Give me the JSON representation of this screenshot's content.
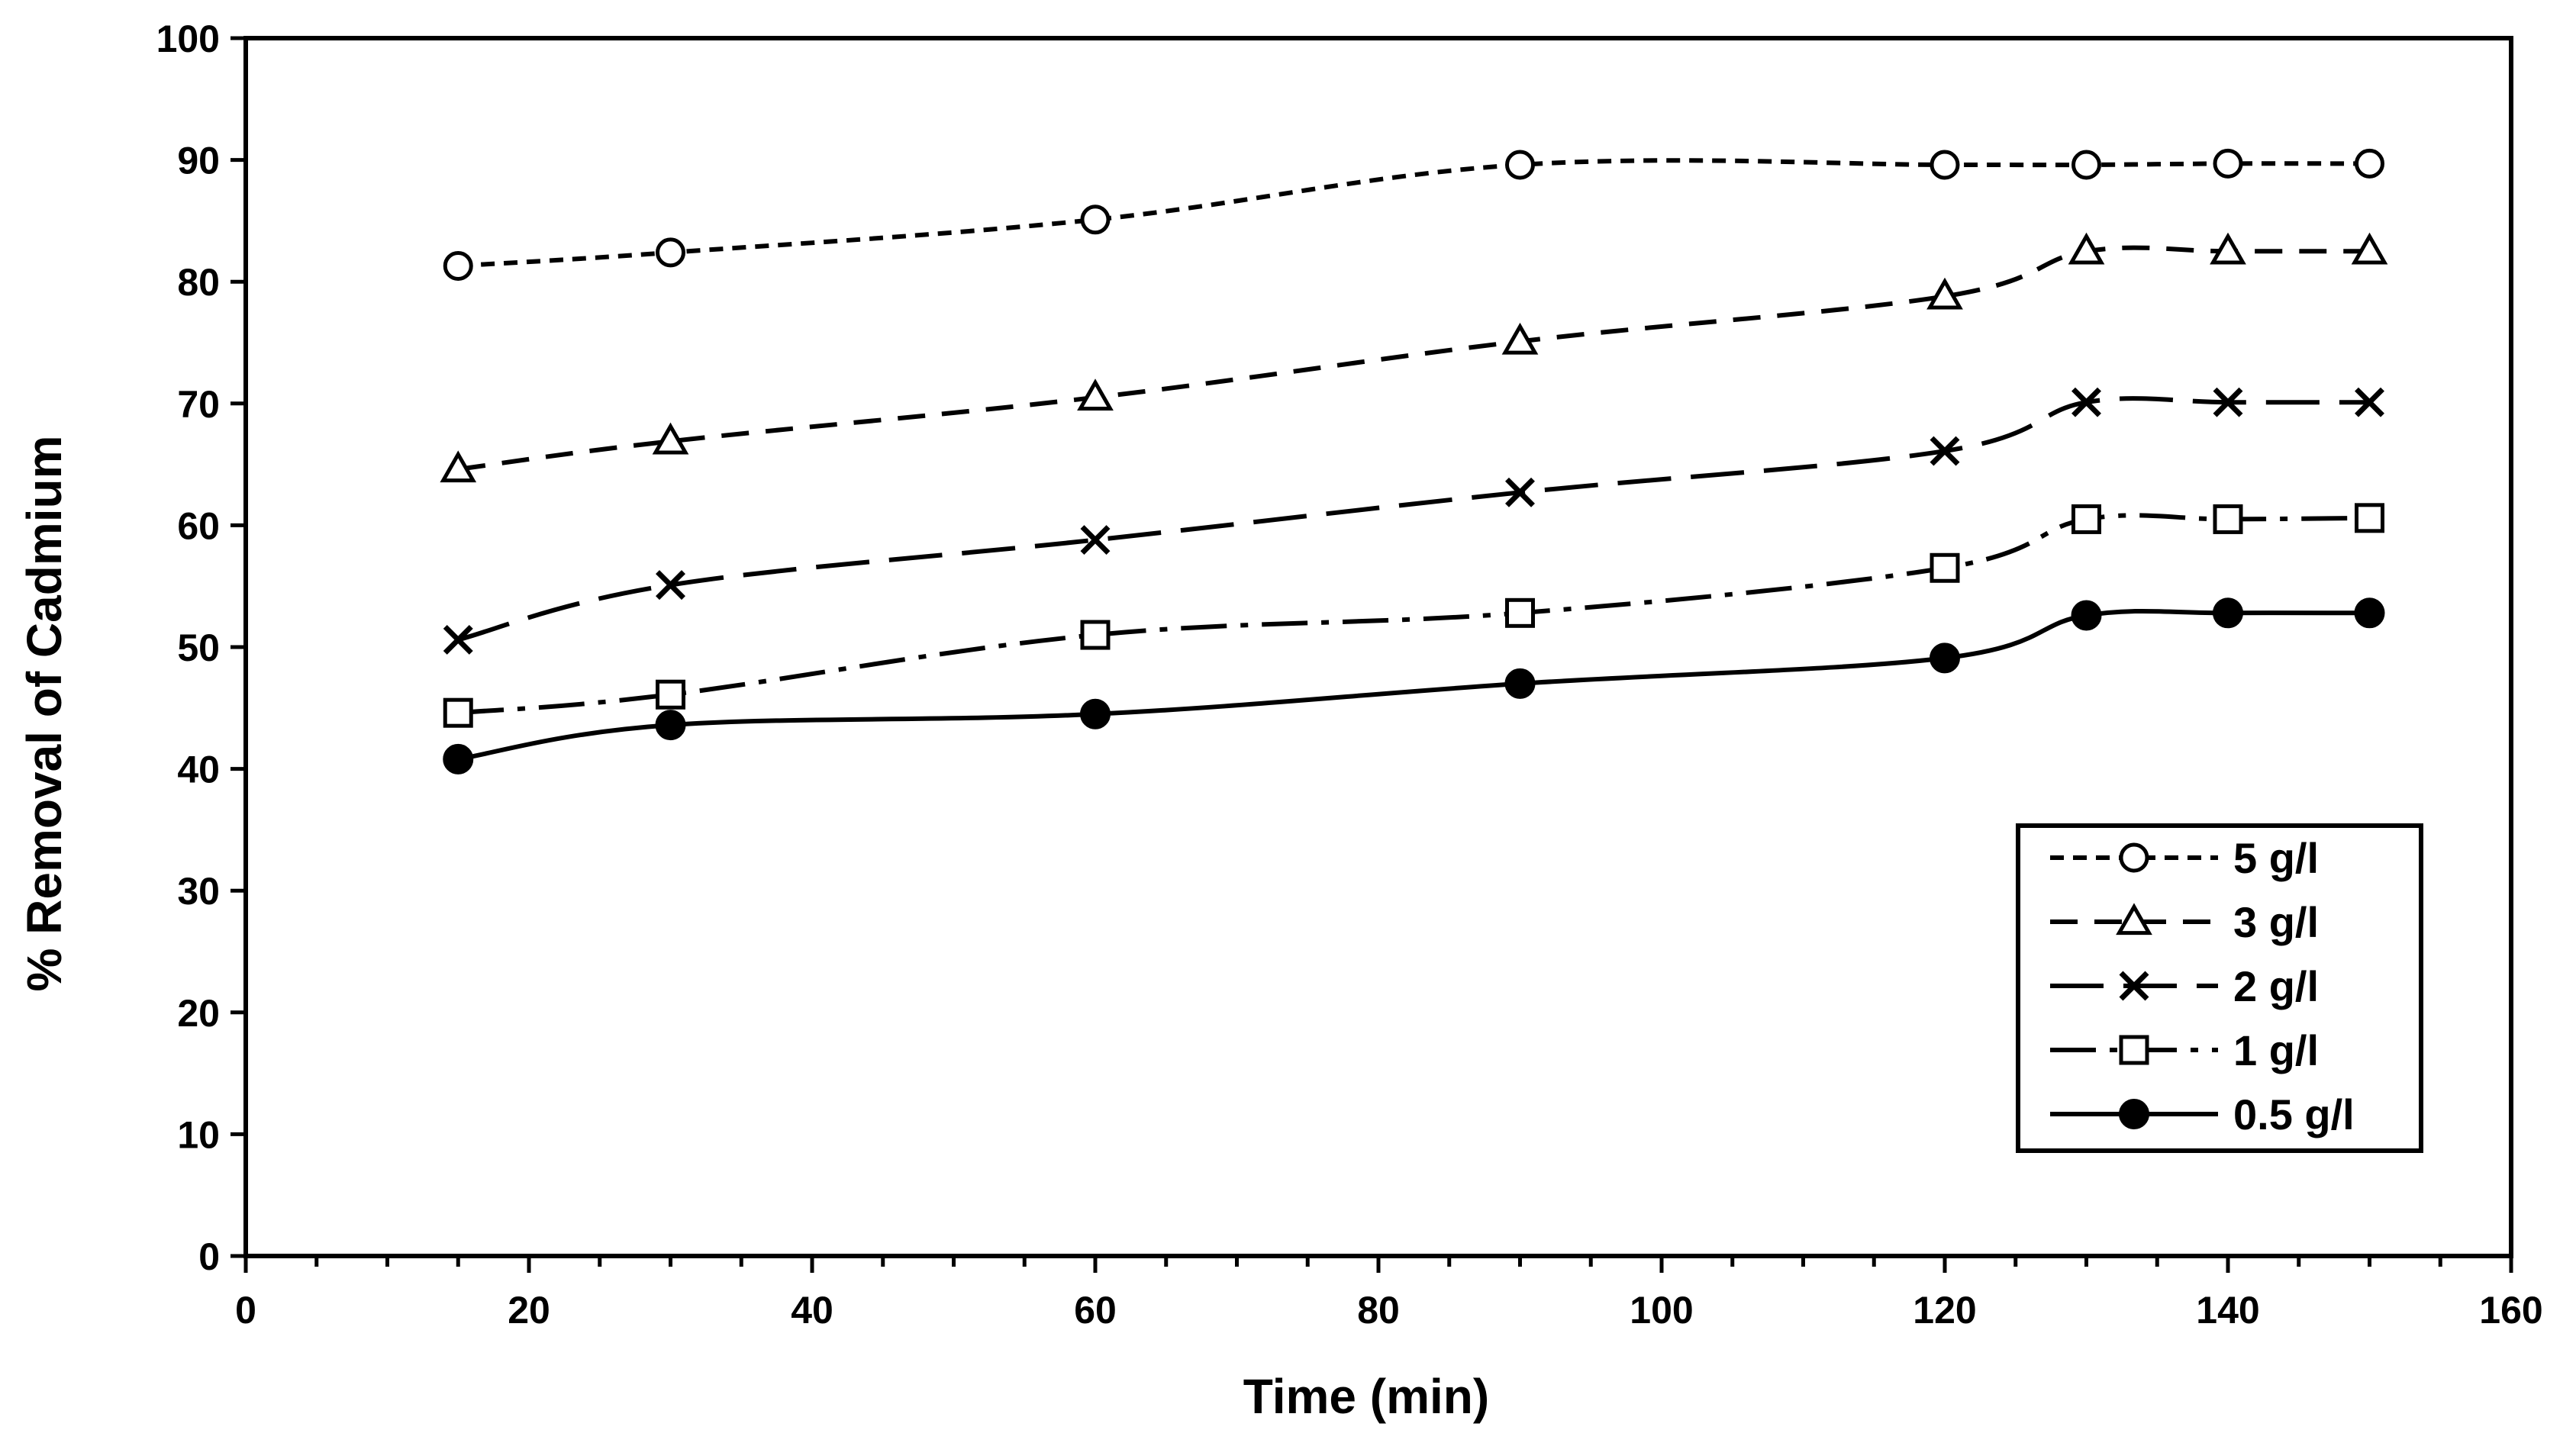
{
  "chart_data": {
    "type": "line",
    "title": "",
    "xlabel": "Time (min)",
    "ylabel": "% Removal of Cadmium",
    "xlim": [
      0,
      160
    ],
    "ylim": [
      0,
      100
    ],
    "x_ticks": [
      0,
      20,
      40,
      60,
      80,
      100,
      120,
      140,
      160
    ],
    "y_ticks": [
      0,
      10,
      20,
      30,
      40,
      50,
      60,
      70,
      80,
      90,
      100
    ],
    "x_minor_step": 5,
    "grid": false,
    "legend_position": "bottom-right",
    "x": [
      15,
      30,
      60,
      90,
      120,
      130,
      140,
      150
    ],
    "series": [
      {
        "name": "5 g/l",
        "marker": "circle-open",
        "dash": "short-dash",
        "values": [
          81.3,
          82.4,
          85.1,
          89.6,
          89.6,
          89.6,
          89.7,
          89.7
        ]
      },
      {
        "name": "3 g/l",
        "marker": "triangle-open",
        "dash": "dash",
        "values": [
          64.6,
          66.9,
          70.5,
          75.1,
          78.8,
          82.5,
          82.5,
          82.5
        ]
      },
      {
        "name": "2 g/l",
        "marker": "x",
        "dash": "long-dash",
        "values": [
          50.6,
          55.1,
          58.8,
          62.7,
          66.1,
          70.1,
          70.1,
          70.1
        ]
      },
      {
        "name": "1 g/l",
        "marker": "square-open",
        "dash": "dash-dot",
        "values": [
          44.6,
          46.1,
          51.0,
          52.8,
          56.5,
          60.5,
          60.5,
          60.6
        ]
      },
      {
        "name": "0.5 g/l",
        "marker": "circle-filled",
        "dash": "solid",
        "values": [
          40.8,
          43.6,
          44.5,
          47.0,
          49.1,
          52.6,
          52.8,
          52.8
        ]
      }
    ]
  }
}
